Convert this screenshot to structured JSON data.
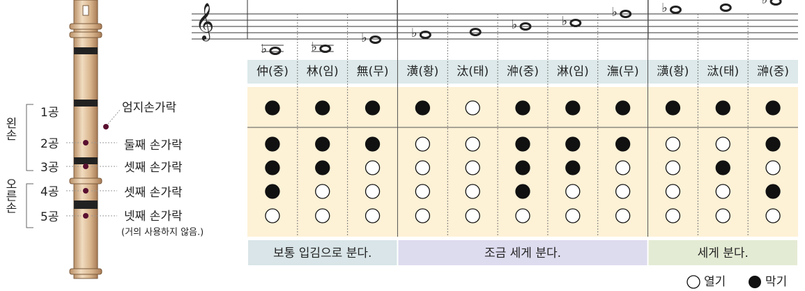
{
  "flute": {
    "holes": [
      "1공",
      "2공",
      "3공",
      "4공",
      "5공"
    ],
    "hands": [
      "왼손",
      "오른손"
    ],
    "fingers": [
      "엄지손가락",
      "둘째 손가락",
      "셋째 손가락",
      "셋째 손가락",
      "넷째 손가락"
    ],
    "finger_note": "(거의 사용하지 않음.)"
  },
  "table": {
    "notes": [
      "仲(중)",
      "林(임)",
      "無(무)",
      "潢(황)",
      "汰(태)",
      "㳞(중)",
      "淋(임)",
      "潕(무)",
      "㶂(황)",
      "㳲(태)",
      "㴢(중)"
    ],
    "fingerings": [
      [
        true,
        true,
        true,
        true,
        false,
        true,
        true,
        true,
        true,
        true,
        true
      ],
      [
        true,
        true,
        true,
        false,
        false,
        true,
        true,
        true,
        false,
        false,
        true
      ],
      [
        true,
        true,
        false,
        false,
        false,
        true,
        true,
        false,
        false,
        true,
        false
      ],
      [
        true,
        false,
        false,
        false,
        false,
        true,
        false,
        false,
        false,
        false,
        true
      ],
      [
        false,
        false,
        false,
        false,
        false,
        false,
        false,
        false,
        false,
        false,
        false
      ]
    ],
    "breath": [
      "보통 입김으로 분다.",
      "조금 세게 분다.",
      "세게 분다."
    ]
  },
  "legend": {
    "open": "열기",
    "closed": "막기"
  }
}
